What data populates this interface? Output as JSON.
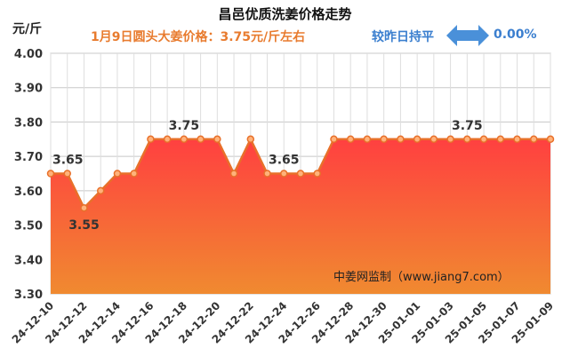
{
  "header": {
    "title": "昌邑优质洗姜价格走势",
    "unit": "元/斤",
    "price_note": "1月9日圆头大姜价格：3.75元/斤左右",
    "compare_label": "较昨日持平",
    "compare_value": "0.00%"
  },
  "watermark": "中姜网监制（www.jiang7.com）",
  "colors": {
    "line": "#e8702a",
    "fill_top": "#ff4040",
    "fill_bottom": "#f08a30",
    "arrow": "#4a90d9",
    "grid": "#c8c8c8"
  },
  "chart_data": {
    "type": "area",
    "x": [
      "24-12-10",
      "24-12-11",
      "24-12-12",
      "24-12-13",
      "24-12-14",
      "24-12-15",
      "24-12-16",
      "24-12-17",
      "24-12-18",
      "24-12-19",
      "24-12-20",
      "24-12-21",
      "24-12-22",
      "24-12-23",
      "24-12-24",
      "24-12-25",
      "24-12-26",
      "24-12-27",
      "24-12-28",
      "24-12-29",
      "24-12-30",
      "24-12-31",
      "25-01-01",
      "25-01-02",
      "25-01-03",
      "25-01-04",
      "25-01-05",
      "25-01-06",
      "25-01-07",
      "25-01-08",
      "25-01-09"
    ],
    "values": [
      3.65,
      3.65,
      3.55,
      3.6,
      3.65,
      3.65,
      3.75,
      3.75,
      3.75,
      3.75,
      3.75,
      3.65,
      3.75,
      3.65,
      3.65,
      3.65,
      3.65,
      3.75,
      3.75,
      3.75,
      3.75,
      3.75,
      3.75,
      3.75,
      3.75,
      3.75,
      3.75,
      3.75,
      3.75,
      3.75,
      3.75
    ],
    "x_tick_labels": [
      "24-12-10",
      "24-12-12",
      "24-12-14",
      "24-12-16",
      "24-12-18",
      "24-12-20",
      "24-12-22",
      "24-12-24",
      "24-12-26",
      "24-12-28",
      "24-12-30",
      "25-01-01",
      "25-01-03",
      "25-01-05",
      "25-01-07",
      "25-01-09"
    ],
    "y_ticks": [
      "3.30",
      "3.40",
      "3.50",
      "3.60",
      "3.70",
      "3.80",
      "3.90",
      "4.00"
    ],
    "ylim": [
      3.3,
      4.0
    ],
    "data_labels": [
      {
        "index": 0,
        "text": "3.65"
      },
      {
        "index": 2,
        "text": "3.55"
      },
      {
        "index": 8,
        "text": "3.75"
      },
      {
        "index": 14,
        "text": "3.65"
      },
      {
        "index": 25,
        "text": "3.75"
      }
    ],
    "grid": true
  }
}
